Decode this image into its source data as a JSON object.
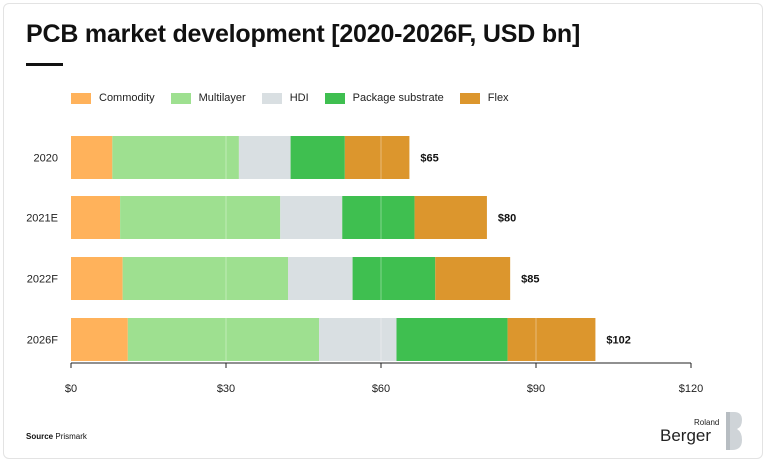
{
  "title": "PCB market development [2020-2026F, USD bn]",
  "source_label": "Source",
  "source_text": "Prismark",
  "logo": {
    "line1": "Roland",
    "line2": "Berger"
  },
  "chart_data": {
    "type": "bar",
    "orientation": "horizontal",
    "stacked": true,
    "categories": [
      "2020",
      "2021E",
      "2022F",
      "2026F"
    ],
    "series": [
      {
        "name": "Commodity",
        "color": "#ffb25b",
        "values": [
          8,
          9.5,
          10,
          11
        ]
      },
      {
        "name": "Multilayer",
        "color": "#9ee090",
        "values": [
          24.5,
          31,
          32,
          37
        ]
      },
      {
        "name": "HDI",
        "color": "#d9dfe2",
        "values": [
          10,
          12,
          12.5,
          15
        ]
      },
      {
        "name": "Package substrate",
        "color": "#3fbf50",
        "values": [
          10.5,
          14,
          16,
          21.5
        ]
      },
      {
        "name": "Flex",
        "color": "#dc962d",
        "values": [
          12.5,
          14,
          14.5,
          17
        ]
      }
    ],
    "totals": [
      "$65",
      "$80",
      "$85",
      "$102"
    ],
    "x_ticks": [
      "$0",
      "$30",
      "$60",
      "$90",
      "$120"
    ],
    "xlim": [
      0,
      120
    ],
    "grid": false,
    "legend_position": "top-left"
  }
}
